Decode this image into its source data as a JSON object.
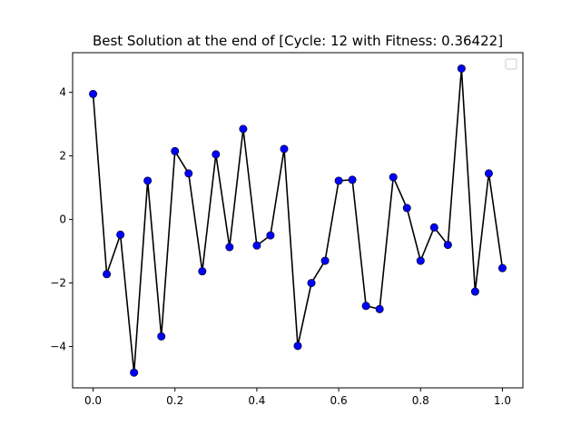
{
  "chart_data": {
    "type": "line",
    "title": "Best Solution at the end of [Cycle: 12 with Fitness: 0.36422]",
    "xlabel": "",
    "ylabel": "",
    "xlim": [
      -0.05,
      1.05
    ],
    "ylim": [
      -5.3,
      5.25
    ],
    "xticks": [
      0.0,
      0.2,
      0.4,
      0.6,
      0.8,
      1.0
    ],
    "xtick_labels": [
      "0.0",
      "0.2",
      "0.4",
      "0.6",
      "0.8",
      "1.0"
    ],
    "yticks": [
      -4,
      -2,
      0,
      2,
      4
    ],
    "ytick_labels": [
      "−4",
      "−2",
      "0",
      "2",
      "4"
    ],
    "grid": false,
    "legend": "upper right (empty)",
    "colors": {
      "line": "#000000",
      "marker": "#0000ff"
    },
    "series": [
      {
        "x": [
          0.0,
          0.0333,
          0.0667,
          0.1,
          0.1333,
          0.1667,
          0.2,
          0.2333,
          0.2667,
          0.3,
          0.3333,
          0.3667,
          0.4,
          0.4333,
          0.4667,
          0.5,
          0.5333,
          0.5667,
          0.6,
          0.6333,
          0.6667,
          0.7,
          0.7333,
          0.7667,
          0.8,
          0.8333,
          0.8667,
          0.9,
          0.9333,
          0.9667,
          1.0
        ],
        "values": [
          3.95,
          -1.72,
          -0.48,
          -4.82,
          1.22,
          -3.68,
          2.15,
          1.45,
          -1.63,
          2.05,
          -0.87,
          2.85,
          -0.82,
          -0.5,
          2.22,
          -3.98,
          -2.0,
          -1.3,
          1.22,
          1.25,
          -2.72,
          -2.82,
          1.33,
          0.36,
          -1.3,
          -0.25,
          -0.8,
          4.75,
          -2.27,
          1.45,
          -1.53
        ]
      }
    ]
  }
}
